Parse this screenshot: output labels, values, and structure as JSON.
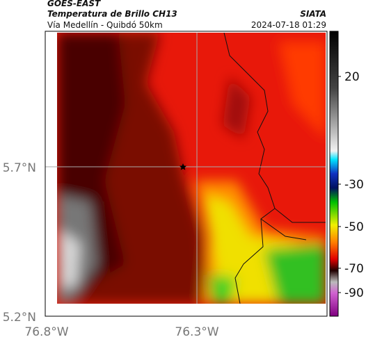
{
  "header": {
    "title": "GOES-EAST",
    "subtitle": "Temperatura de Brillo CH13",
    "route": "Vía Medellín - Quibdó 50km",
    "source": "SIATA",
    "timestamp": "2024-07-18 01:29"
  },
  "map": {
    "lat_labels": [
      "5.7°N",
      "5.2°N"
    ],
    "lon_labels": [
      "76.8°W",
      "76.3°W"
    ]
  },
  "colorbar": {
    "ticks": [
      20,
      -30,
      -50,
      -70,
      -90
    ]
  }
}
